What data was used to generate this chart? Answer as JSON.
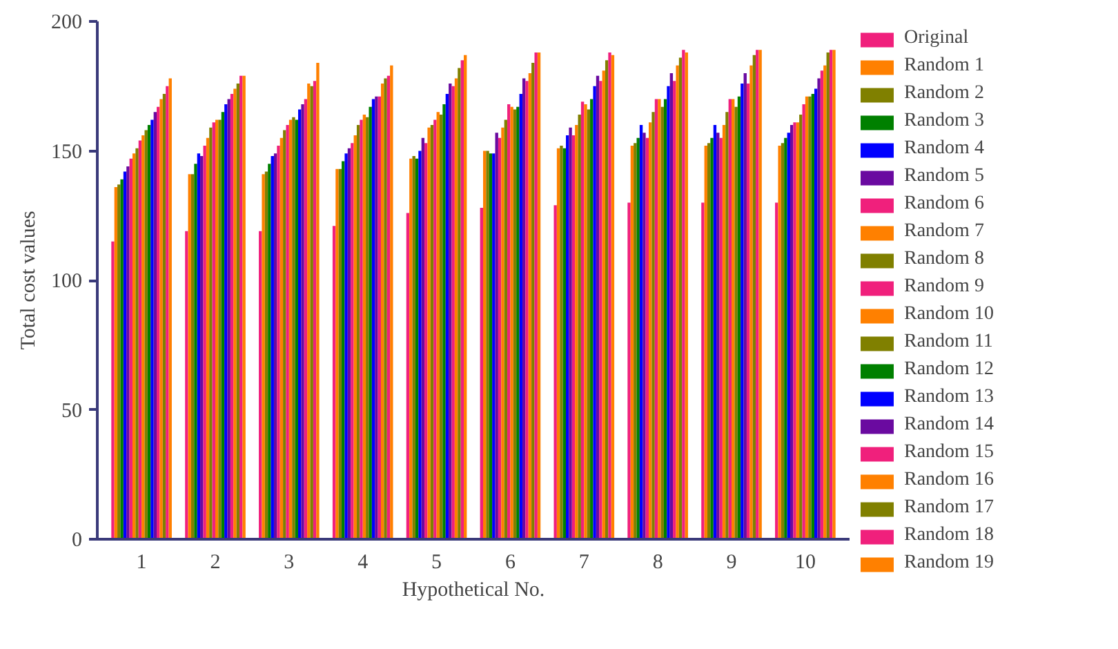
{
  "chart_data": {
    "type": "bar",
    "xlabel": "Hypothetical No.",
    "ylabel": "Total cost values",
    "categories": [
      "1",
      "2",
      "3",
      "4",
      "5",
      "6",
      "7",
      "8",
      "9",
      "10"
    ],
    "ylim": [
      0,
      200
    ],
    "yticks": [
      0,
      50,
      100,
      150,
      200
    ],
    "grid": false,
    "legend": "right",
    "series": [
      {
        "name": "Original",
        "color": "#f0207c",
        "values": [
          115,
          119,
          119,
          121,
          126,
          128,
          129,
          130,
          130,
          130
        ]
      },
      {
        "name": "Random 1",
        "color": "#ff8000",
        "values": [
          136,
          141,
          141,
          143,
          147,
          150,
          151,
          152,
          152,
          152
        ]
      },
      {
        "name": "Random 2",
        "color": "#808000",
        "values": [
          137,
          141,
          142,
          143,
          148,
          150,
          152,
          153,
          153,
          153
        ]
      },
      {
        "name": "Random 3",
        "color": "#008000",
        "values": [
          139,
          145,
          145,
          146,
          147,
          149,
          151,
          155,
          155,
          155
        ]
      },
      {
        "name": "Random 4",
        "color": "#0000ff",
        "values": [
          142,
          149,
          148,
          149,
          150,
          149,
          156,
          160,
          160,
          157
        ]
      },
      {
        "name": "Random 5",
        "color": "#6a0aa0",
        "values": [
          144,
          148,
          149,
          151,
          155,
          157,
          159,
          157,
          157,
          160
        ]
      },
      {
        "name": "Random 6",
        "color": "#f0207c",
        "values": [
          147,
          152,
          152,
          153,
          153,
          155,
          156,
          155,
          155,
          161
        ]
      },
      {
        "name": "Random 7",
        "color": "#ff8000",
        "values": [
          149,
          155,
          155,
          156,
          159,
          159,
          160,
          161,
          160,
          161
        ]
      },
      {
        "name": "Random 8",
        "color": "#808000",
        "values": [
          151,
          159,
          158,
          160,
          160,
          162,
          164,
          165,
          165,
          164
        ]
      },
      {
        "name": "Random 9",
        "color": "#f0207c",
        "values": [
          154,
          161,
          160,
          162,
          162,
          168,
          169,
          170,
          170,
          168
        ]
      },
      {
        "name": "Random 10",
        "color": "#ff8000",
        "values": [
          156,
          162,
          162,
          164,
          165,
          167,
          168,
          170,
          170,
          171
        ]
      },
      {
        "name": "Random 11",
        "color": "#808000",
        "values": [
          158,
          162,
          163,
          163,
          164,
          166,
          166,
          167,
          167,
          171
        ]
      },
      {
        "name": "Random 12",
        "color": "#008000",
        "values": [
          160,
          165,
          162,
          167,
          168,
          167,
          170,
          170,
          171,
          172
        ]
      },
      {
        "name": "Random 13",
        "color": "#0000ff",
        "values": [
          162,
          168,
          166,
          170,
          172,
          172,
          175,
          175,
          176,
          174
        ]
      },
      {
        "name": "Random 14",
        "color": "#6a0aa0",
        "values": [
          165,
          170,
          168,
          171,
          176,
          178,
          179,
          180,
          180,
          178
        ]
      },
      {
        "name": "Random 15",
        "color": "#f0207c",
        "values": [
          167,
          172,
          170,
          171,
          175,
          177,
          177,
          177,
          176,
          181
        ]
      },
      {
        "name": "Random 16",
        "color": "#ff8000",
        "values": [
          170,
          174,
          176,
          176,
          178,
          180,
          181,
          183,
          183,
          183
        ]
      },
      {
        "name": "Random 17",
        "color": "#808000",
        "values": [
          172,
          176,
          175,
          178,
          182,
          184,
          185,
          186,
          187,
          188
        ]
      },
      {
        "name": "Random 18",
        "color": "#f0207c",
        "values": [
          175,
          179,
          177,
          179,
          185,
          188,
          188,
          189,
          189,
          189
        ]
      },
      {
        "name": "Random 19",
        "color": "#ff8000",
        "values": [
          178,
          179,
          184,
          183,
          187,
          188,
          187,
          188,
          189,
          189
        ]
      }
    ]
  }
}
